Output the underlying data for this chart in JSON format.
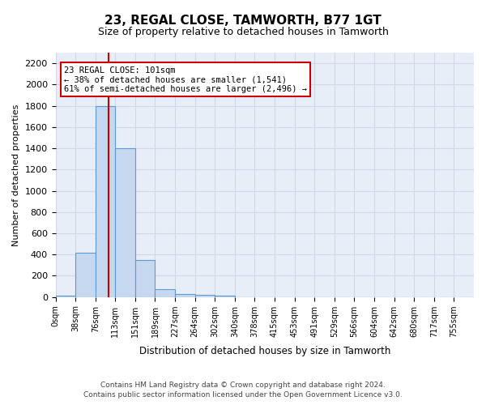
{
  "title": "23, REGAL CLOSE, TAMWORTH, B77 1GT",
  "subtitle": "Size of property relative to detached houses in Tamworth",
  "xlabel": "Distribution of detached houses by size in Tamworth",
  "ylabel": "Number of detached properties",
  "bin_labels": [
    "0sqm",
    "38sqm",
    "76sqm",
    "113sqm",
    "151sqm",
    "189sqm",
    "227sqm",
    "264sqm",
    "302sqm",
    "340sqm",
    "378sqm",
    "415sqm",
    "453sqm",
    "491sqm",
    "529sqm",
    "566sqm",
    "604sqm",
    "642sqm",
    "680sqm",
    "717sqm",
    "755sqm"
  ],
  "bar_values": [
    15,
    420,
    1800,
    1400,
    350,
    75,
    30,
    20,
    15,
    0,
    0,
    0,
    0,
    0,
    0,
    0,
    0,
    0,
    0,
    0,
    0
  ],
  "bar_color": "#c5d8f0",
  "bar_edge_color": "#5b9bd5",
  "property_line_x": 101,
  "property_line_label": "23 REGAL CLOSE: 101sqm",
  "annotation_line1": "← 38% of detached houses are smaller (1,541)",
  "annotation_line2": "61% of semi-detached houses are larger (2,496) →",
  "annotation_box_color": "#cc0000",
  "ylim": [
    0,
    2300
  ],
  "yticks": [
    0,
    200,
    400,
    600,
    800,
    1000,
    1200,
    1400,
    1600,
    1800,
    2000,
    2200
  ],
  "grid_color": "#d0d8e8",
  "bg_color": "#e8eef8",
  "footer1": "Contains HM Land Registry data © Crown copyright and database right 2024.",
  "footer2": "Contains public sector information licensed under the Open Government Licence v3.0.",
  "bin_width": 38
}
